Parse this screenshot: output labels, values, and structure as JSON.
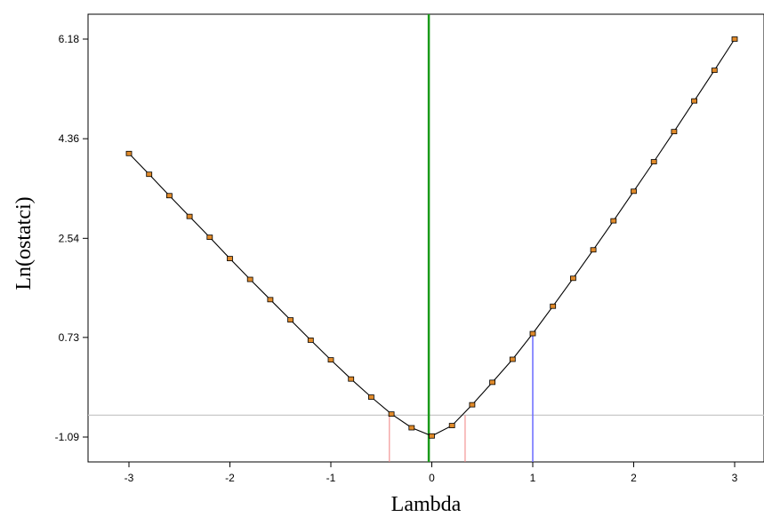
{
  "chart_data": {
    "type": "line",
    "title": "",
    "xlabel": "Lambda",
    "ylabel": "Ln(ostatci)",
    "xlim": [
      -3.5,
      3.3
    ],
    "ylim": [
      -1.55,
      6.65
    ],
    "xticks": [
      -3,
      -2,
      -1,
      0,
      1,
      2,
      3
    ],
    "xtick_labels": [
      "-3",
      "-2",
      "-1",
      "0",
      "1",
      "2",
      "3"
    ],
    "yticks": [
      -1.09,
      0.73,
      2.54,
      4.36,
      6.18
    ],
    "ytick_labels": [
      "-1.09",
      "0.73",
      "2.54",
      "4.36",
      "6.18"
    ],
    "grid": false,
    "series": [
      {
        "line_color": "#000000",
        "marker_color": "#e08a2a",
        "x": [
          -3.0,
          -2.8,
          -2.6,
          -2.4,
          -2.2,
          -2.0,
          -1.8,
          -1.6,
          -1.4,
          -1.2,
          -1.0,
          -0.8,
          -0.6,
          -0.4,
          -0.2,
          0.0,
          0.2,
          0.4,
          0.6,
          0.8,
          1.0,
          1.2,
          1.4,
          1.6,
          1.8,
          2.0,
          2.2,
          2.4,
          2.6,
          2.8,
          3.0
        ],
        "y": [
          4.09,
          3.71,
          3.32,
          2.94,
          2.56,
          2.17,
          1.79,
          1.42,
          1.05,
          0.68,
          0.32,
          -0.03,
          -0.36,
          -0.67,
          -0.92,
          -1.07,
          -0.88,
          -0.5,
          -0.09,
          0.33,
          0.8,
          1.3,
          1.81,
          2.33,
          2.86,
          3.4,
          3.94,
          4.49,
          5.05,
          5.61,
          6.18
        ]
      }
    ],
    "reference_lines": {
      "vertical_green": {
        "x": -0.03,
        "color": "#1a9a1a"
      },
      "vertical_blue": {
        "x": 1.0,
        "y_top": 0.8,
        "color": "#6a6aff"
      },
      "ci_lower": {
        "x": -0.42,
        "color": "#f08080"
      },
      "ci_upper": {
        "x": 0.33,
        "color": "#f08080"
      },
      "horizontal_threshold": {
        "y": -0.69,
        "color": "#c8c8c8"
      }
    }
  }
}
